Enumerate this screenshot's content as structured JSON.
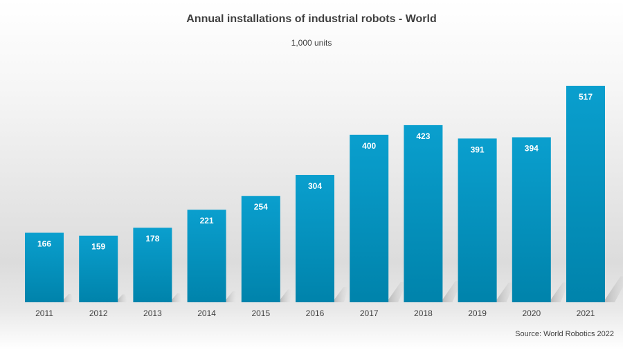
{
  "chart_data": {
    "type": "bar",
    "title": "Annual installations of industrial robots - World",
    "subtitle": "1,000 units",
    "source": "Source: World Robotics 2022",
    "categories": [
      "2011",
      "2012",
      "2013",
      "2014",
      "2015",
      "2016",
      "2017",
      "2018",
      "2019",
      "2020",
      "2021"
    ],
    "values": [
      166,
      159,
      178,
      221,
      254,
      304,
      400,
      423,
      391,
      394,
      517
    ],
    "xlabel": "",
    "ylabel": "",
    "ylim": [
      0,
      517
    ],
    "grid": false,
    "data_labels": true,
    "colors": {
      "bar_top": "#0a9fce",
      "bar_bottom": "#0083ab",
      "label": "#ffffff",
      "text": "#404040"
    }
  }
}
